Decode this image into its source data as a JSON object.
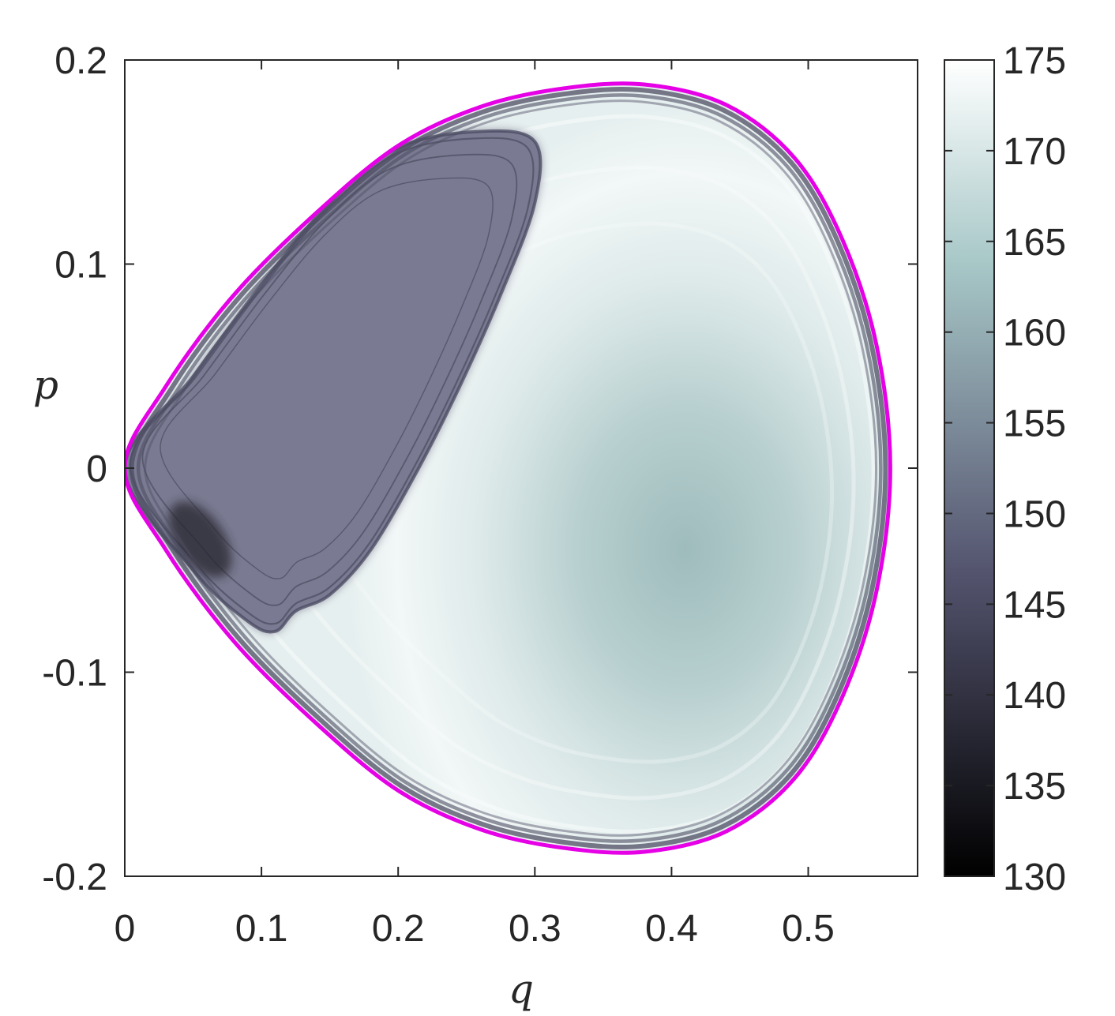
{
  "chart_data": {
    "type": "heatmap",
    "title": "",
    "xlabel": "q",
    "ylabel": "p",
    "xlim": [
      0,
      0.58
    ],
    "ylim": [
      -0.2,
      0.2
    ],
    "x_ticks": [
      "0",
      "0.1",
      "0.2",
      "0.3",
      "0.4",
      "0.5"
    ],
    "x_tick_values": [
      0,
      0.1,
      0.2,
      0.3,
      0.4,
      0.5
    ],
    "y_ticks": [
      "0.2",
      "0.1",
      "0",
      "-0.1",
      "-0.2"
    ],
    "y_tick_values": [
      0.2,
      0.1,
      0,
      -0.1,
      -0.2
    ],
    "colorbar": {
      "range": [
        130,
        175
      ],
      "ticks": [
        "175",
        "170",
        "165",
        "160",
        "155",
        "150",
        "145",
        "140",
        "135",
        "130"
      ],
      "tick_values": [
        175,
        170,
        165,
        160,
        155,
        150,
        145,
        140,
        135,
        130
      ],
      "colormap": "bone"
    },
    "boundary": {
      "color": "#e600e6",
      "points": [
        [
          0.0,
          0.0
        ],
        [
          0.03,
          0.04
        ],
        [
          0.08,
          0.085
        ],
        [
          0.14,
          0.125
        ],
        [
          0.2,
          0.158
        ],
        [
          0.26,
          0.177
        ],
        [
          0.32,
          0.186
        ],
        [
          0.38,
          0.188
        ],
        [
          0.44,
          0.178
        ],
        [
          0.49,
          0.152
        ],
        [
          0.525,
          0.112
        ],
        [
          0.55,
          0.06
        ],
        [
          0.56,
          0.0
        ],
        [
          0.55,
          -0.06
        ],
        [
          0.525,
          -0.112
        ],
        [
          0.49,
          -0.152
        ],
        [
          0.44,
          -0.178
        ],
        [
          0.38,
          -0.188
        ],
        [
          0.32,
          -0.186
        ],
        [
          0.26,
          -0.177
        ],
        [
          0.2,
          -0.158
        ],
        [
          0.14,
          -0.125
        ],
        [
          0.08,
          -0.085
        ],
        [
          0.03,
          -0.04
        ]
      ]
    },
    "features": {
      "dark_lobe": {
        "value": 152,
        "points": [
          [
            0.0,
            0.0
          ],
          [
            0.05,
            0.045
          ],
          [
            0.1,
            0.09
          ],
          [
            0.15,
            0.13
          ],
          [
            0.2,
            0.157
          ],
          [
            0.26,
            0.165
          ],
          [
            0.3,
            0.16
          ],
          [
            0.3,
            0.13
          ],
          [
            0.275,
            0.085
          ],
          [
            0.245,
            0.04
          ],
          [
            0.215,
            0.0
          ],
          [
            0.18,
            -0.04
          ],
          [
            0.15,
            -0.062
          ],
          [
            0.125,
            -0.07
          ],
          [
            0.11,
            -0.08
          ],
          [
            0.09,
            -0.075
          ],
          [
            0.05,
            -0.05
          ]
        ]
      },
      "light_region_value": 173,
      "center_value": 163,
      "center": [
        0.41,
        -0.04
      ]
    }
  }
}
